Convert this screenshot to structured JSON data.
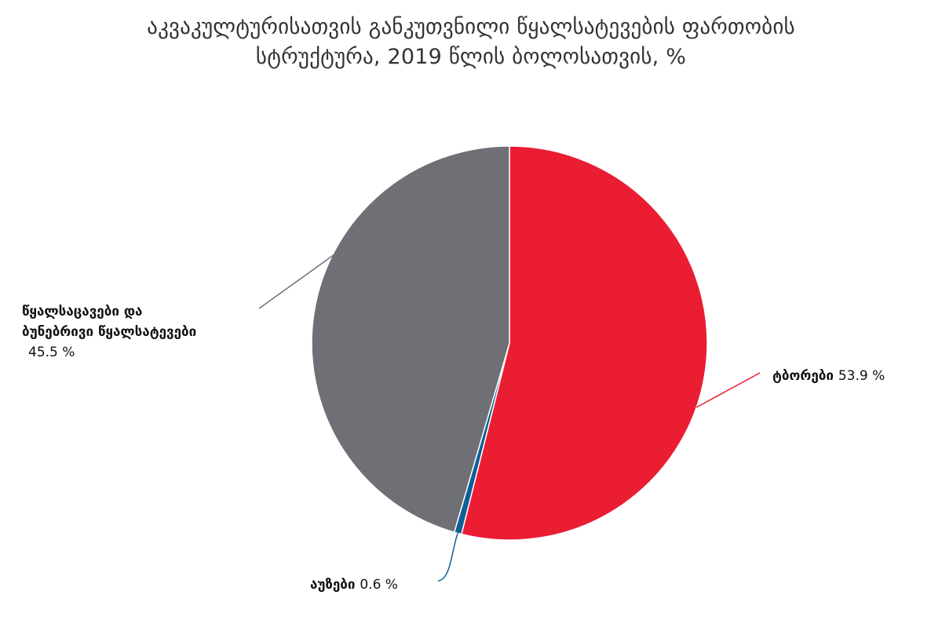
{
  "chart_data": {
    "type": "pie",
    "title": "აკვაკულტურისათვის განკუთვნილი წყალსატევების ფართობის სტრუქტურა, 2019 წლის ბოლოსათვის, %",
    "title_lines": [
      "აკვაკულტურისათვის განკუთვნილი წყალსატევების ფართობის",
      "სტრუქტურა, 2019 წლის ბოლოსათვის, %"
    ],
    "slices": [
      {
        "label": "ტბორები",
        "value": 53.9,
        "value_text": "53.9 %",
        "color": "#ea1d33"
      },
      {
        "label": "აუზები",
        "value": 0.6,
        "value_text": "0.6 %",
        "color": "#0d5f96"
      },
      {
        "label_lines": [
          "წყალსაცავები და",
          "ბუნებრივი წყალსატევები"
        ],
        "value": 45.5,
        "value_text": "45.5 %",
        "color": "#6e7075"
      }
    ],
    "start": "12 o'clock",
    "direction": "clockwise",
    "legend": "none",
    "labels": "outside with leader lines"
  }
}
